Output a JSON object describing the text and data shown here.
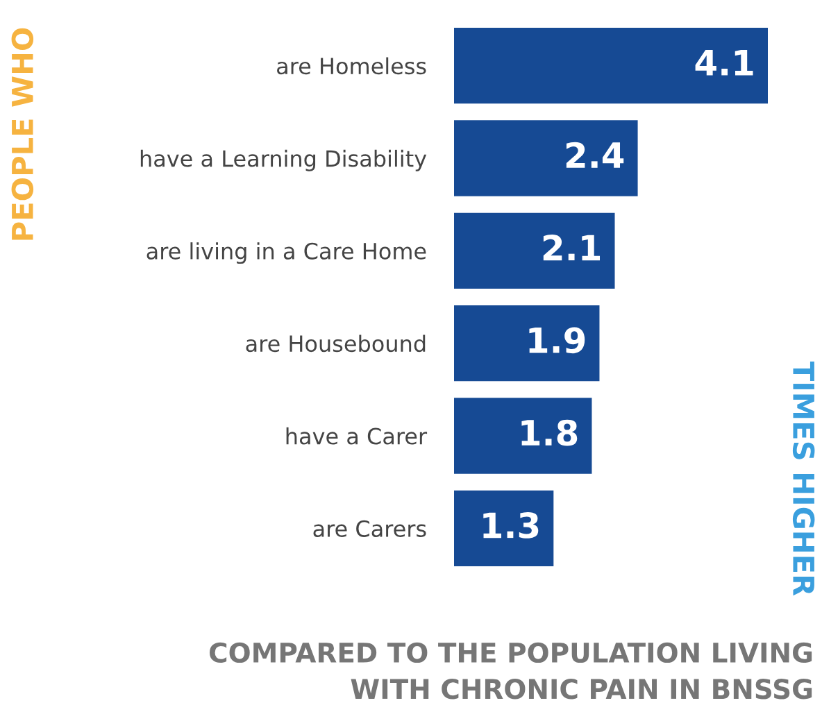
{
  "chart_data": {
    "type": "bar",
    "orientation": "horizontal",
    "categories": [
      "are Homeless",
      "have a Learning Disability",
      "are living in a Care Home",
      "are Housebound",
      "have a Carer",
      "are Carers"
    ],
    "values": [
      4.1,
      2.4,
      2.1,
      1.9,
      1.8,
      1.3
    ],
    "color": "#164a94",
    "data_labels": true,
    "ylabel": "PEOPLE WHO",
    "y2label": "TIMES HIGHER",
    "annotations": [
      "COMPARED TO THE POPULATION LIVING\nWITH CHRONIC PAIN IN BNSSG"
    ],
    "grid": false,
    "legend": false
  }
}
